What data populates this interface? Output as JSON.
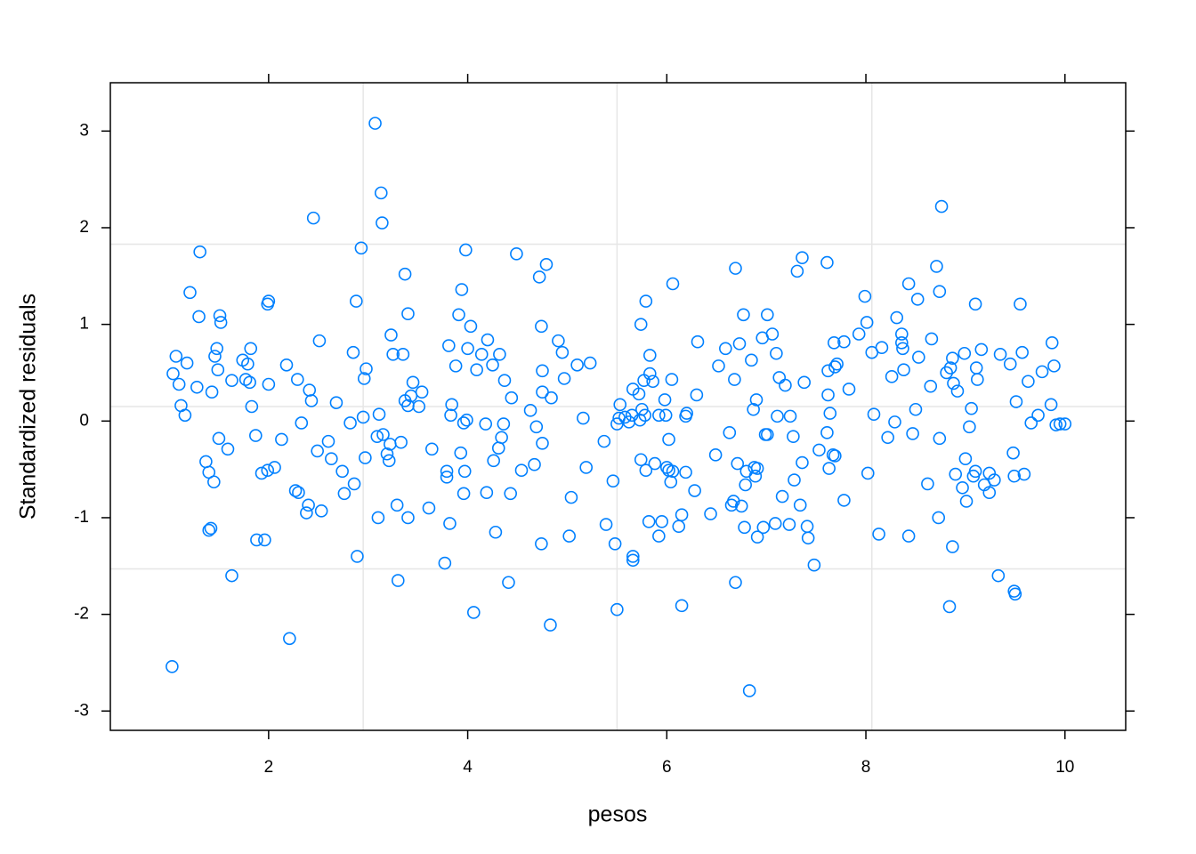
{
  "chart_data": {
    "type": "scatter",
    "x_label": "pesos",
    "y_label": "Standardized residuals",
    "color": "#0080ff",
    "xlim": [
      0.41,
      10.61
    ],
    "ylim": [
      -3.2,
      3.5
    ],
    "xticks": [
      2,
      4,
      6,
      8,
      10
    ],
    "yticks": [
      -3,
      -2,
      -1,
      0,
      1,
      2,
      3
    ],
    "grid": true,
    "grid_x": [
      2.95,
      5.5,
      8.06
    ],
    "grid_y": [
      1.83,
      0.15,
      -1.53
    ],
    "x": [
      1.03,
      1.04,
      1.07,
      1.1,
      1.12,
      1.16,
      1.18,
      1.21,
      1.28,
      1.3,
      1.31,
      1.37,
      1.4,
      1.4,
      1.42,
      1.43,
      1.45,
      1.46,
      1.48,
      1.49,
      1.5,
      1.51,
      1.52,
      1.59,
      1.63,
      1.63,
      1.74,
      1.77,
      1.79,
      1.81,
      1.82,
      1.83,
      1.87,
      1.88,
      1.93,
      1.96,
      1.99,
      1.99,
      2.0,
      2.0,
      2.06,
      2.13,
      2.18,
      2.21,
      2.27,
      2.29,
      2.3,
      2.33,
      2.38,
      2.4,
      2.41,
      2.43,
      2.45,
      2.49,
      2.51,
      2.53,
      2.6,
      2.63,
      2.68,
      2.74,
      2.76,
      2.82,
      2.85,
      2.86,
      2.88,
      2.89,
      2.93,
      2.95,
      2.96,
      2.97,
      2.98,
      3.07,
      3.09,
      3.1,
      3.11,
      3.13,
      3.14,
      3.15,
      3.19,
      3.21,
      3.22,
      3.23,
      3.25,
      3.29,
      3.3,
      3.33,
      3.35,
      3.37,
      3.37,
      3.4,
      3.4,
      3.4,
      3.43,
      3.45,
      3.51,
      3.54,
      3.61,
      3.64,
      3.77,
      3.79,
      3.79,
      3.81,
      3.82,
      3.83,
      3.84,
      3.88,
      3.91,
      3.93,
      3.94,
      3.96,
      3.96,
      3.97,
      3.98,
      3.99,
      4.0,
      4.03,
      4.06,
      4.09,
      4.14,
      4.18,
      4.19,
      4.2,
      4.25,
      4.26,
      4.28,
      4.31,
      4.32,
      4.34,
      4.36,
      4.37,
      4.41,
      4.43,
      4.44,
      4.49,
      4.54,
      4.63,
      4.67,
      4.69,
      4.72,
      4.74,
      4.74,
      4.75,
      4.75,
      4.75,
      4.79,
      4.83,
      4.84,
      4.91,
      4.95,
      4.97,
      5.02,
      5.04,
      5.1,
      5.16,
      5.19,
      5.23,
      5.37,
      5.39,
      5.46,
      5.48,
      5.5,
      5.5,
      5.52,
      5.53,
      5.58,
      5.62,
      5.65,
      5.66,
      5.66,
      5.66,
      5.72,
      5.73,
      5.74,
      5.74,
      5.75,
      5.77,
      5.78,
      5.79,
      5.79,
      5.82,
      5.83,
      5.83,
      5.86,
      5.88,
      5.92,
      5.92,
      5.95,
      5.98,
      5.99,
      6.0,
      6.02,
      6.02,
      6.04,
      6.05,
      6.06,
      6.06,
      6.12,
      6.15,
      6.15,
      6.19,
      6.19,
      6.2,
      6.28,
      6.3,
      6.31,
      6.44,
      6.49,
      6.52,
      6.59,
      6.63,
      6.65,
      6.67,
      6.68,
      6.69,
      6.69,
      6.71,
      6.73,
      6.75,
      6.77,
      6.78,
      6.79,
      6.8,
      6.83,
      6.85,
      6.87,
      6.88,
      6.89,
      6.9,
      6.91,
      6.91,
      6.96,
      6.97,
      6.99,
      7.01,
      7.01,
      7.06,
      7.09,
      7.1,
      7.11,
      7.13,
      7.16,
      7.19,
      7.23,
      7.24,
      7.27,
      7.28,
      7.31,
      7.34,
      7.36,
      7.36,
      7.38,
      7.41,
      7.42,
      7.48,
      7.53,
      7.61,
      7.61,
      7.62,
      7.62,
      7.63,
      7.64,
      7.67,
      7.68,
      7.69,
      7.69,
      7.71,
      7.78,
      7.78,
      7.83,
      7.93,
      7.99,
      8.01,
      8.02,
      8.06,
      8.08,
      8.13,
      8.16,
      8.22,
      8.26,
      8.29,
      8.31,
      8.36,
      8.36,
      8.37,
      8.38,
      8.43,
      8.43,
      8.47,
      8.5,
      8.52,
      8.53,
      8.62,
      8.65,
      8.66,
      8.71,
      8.73,
      8.74,
      8.74,
      8.76,
      8.81,
      8.84,
      8.85,
      8.87,
      8.87,
      8.88,
      8.9,
      8.92,
      8.97,
      8.99,
      9.0,
      9.01,
      9.04,
      9.06,
      9.08,
      9.1,
      9.1,
      9.11,
      9.12,
      9.16,
      9.19,
      9.24,
      9.24,
      9.29,
      9.33,
      9.35,
      9.45,
      9.48,
      9.49,
      9.49,
      9.5,
      9.51,
      9.55,
      9.57,
      9.59,
      9.63,
      9.66,
      9.73,
      9.77,
      9.86,
      9.87,
      9.89,
      9.91,
      9.95,
      10.0
    ],
    "values": [
      -2.54,
      0.49,
      0.67,
      0.38,
      0.16,
      0.06,
      0.6,
      1.33,
      0.35,
      1.08,
      1.75,
      -0.42,
      -0.53,
      -1.13,
      -1.11,
      0.3,
      -0.63,
      0.67,
      0.75,
      0.53,
      -0.18,
      1.09,
      1.02,
      -0.29,
      0.42,
      -1.6,
      0.63,
      0.43,
      0.59,
      0.4,
      0.75,
      0.15,
      -0.15,
      -1.23,
      -0.54,
      -1.23,
      -0.51,
      1.21,
      1.24,
      0.38,
      -0.48,
      -0.19,
      0.58,
      -2.25,
      -0.72,
      0.43,
      -0.74,
      -0.02,
      -0.95,
      -0.87,
      0.32,
      0.21,
      2.1,
      -0.31,
      0.83,
      -0.93,
      -0.21,
      -0.39,
      0.19,
      -0.52,
      -0.75,
      -0.02,
      0.71,
      -0.65,
      1.24,
      -1.4,
      1.79,
      0.04,
      0.44,
      -0.38,
      0.54,
      3.08,
      -0.16,
      -1.0,
      0.07,
      2.36,
      2.05,
      -0.14,
      -0.34,
      -0.41,
      -0.24,
      0.89,
      0.69,
      -0.87,
      -1.65,
      -0.22,
      0.69,
      1.52,
      0.21,
      0.16,
      1.11,
      -1.0,
      0.26,
      0.4,
      0.15,
      0.3,
      -0.9,
      -0.29,
      -1.47,
      -0.58,
      -0.52,
      0.78,
      -1.06,
      0.06,
      0.17,
      0.57,
      1.1,
      -0.33,
      1.36,
      -0.75,
      -0.02,
      -0.52,
      1.77,
      0.01,
      0.75,
      0.98,
      -1.98,
      0.53,
      0.69,
      -0.03,
      -0.74,
      0.84,
      0.58,
      -0.41,
      -1.15,
      -0.28,
      0.69,
      -0.17,
      -0.03,
      0.42,
      -1.67,
      -0.75,
      0.24,
      1.73,
      -0.51,
      0.11,
      -0.45,
      -0.06,
      1.49,
      0.98,
      -1.27,
      -0.23,
      0.52,
      0.3,
      1.62,
      -2.11,
      0.24,
      0.83,
      0.71,
      0.44,
      -1.19,
      -0.79,
      0.58,
      0.03,
      -0.48,
      0.6,
      -0.21,
      -1.07,
      -0.62,
      -1.27,
      -1.95,
      -0.03,
      0.03,
      0.17,
      0.04,
      -0.01,
      0.06,
      -1.4,
      -1.44,
      0.33,
      0.28,
      0.01,
      1.0,
      -0.4,
      0.12,
      0.42,
      0.06,
      1.24,
      -0.51,
      -1.04,
      0.68,
      0.49,
      0.41,
      -0.44,
      -1.19,
      0.06,
      -1.04,
      0.22,
      0.06,
      -0.48,
      -0.19,
      -0.51,
      -0.63,
      0.43,
      1.42,
      -0.52,
      -1.09,
      -0.97,
      -1.91,
      -0.53,
      0.05,
      0.08,
      -0.72,
      0.27,
      0.82,
      -0.96,
      -0.35,
      0.57,
      0.75,
      -0.12,
      -0.87,
      -0.83,
      0.43,
      -1.67,
      1.58,
      -0.44,
      0.8,
      -0.88,
      1.1,
      -1.1,
      -0.66,
      -0.52,
      -2.79,
      0.63,
      0.12,
      -0.48,
      -0.57,
      0.22,
      -0.49,
      -1.2,
      0.86,
      -1.1,
      -0.14,
      -0.14,
      1.1,
      0.9,
      -1.06,
      0.7,
      0.05,
      0.45,
      -0.78,
      0.37,
      -1.07,
      0.05,
      -0.16,
      -0.61,
      1.55,
      -0.87,
      1.69,
      -0.43,
      0.4,
      -1.09,
      -1.21,
      -1.49,
      -0.3,
      1.64,
      -0.12,
      0.52,
      0.27,
      -0.49,
      0.08,
      -0.35,
      0.81,
      -0.36,
      0.56,
      0.59,
      -0.82,
      0.82,
      0.33,
      0.9,
      1.29,
      1.02,
      -0.54,
      0.71,
      0.07,
      -1.17,
      0.76,
      -0.17,
      0.46,
      -0.01,
      1.07,
      0.9,
      0.81,
      0.75,
      0.53,
      1.42,
      -1.19,
      -0.13,
      0.12,
      1.26,
      0.66,
      -0.65,
      0.36,
      0.85,
      1.6,
      -1.0,
      1.34,
      -0.18,
      2.22,
      0.5,
      -1.92,
      0.55,
      0.65,
      -1.3,
      0.39,
      -0.55,
      0.31,
      -0.69,
      0.7,
      -0.39,
      -0.83,
      -0.06,
      0.13,
      -0.57,
      -0.52,
      1.21,
      0.55,
      0.43,
      0.74,
      -0.66,
      -0.54,
      -0.74,
      -0.61,
      -1.6,
      0.69,
      0.59,
      -0.33,
      -0.57,
      -1.76,
      -1.79,
      0.2,
      1.21,
      0.71,
      -0.55,
      0.41,
      -0.02,
      0.06,
      0.51,
      0.17,
      0.81,
      0.57,
      -0.04,
      -0.03,
      -0.03
    ]
  }
}
